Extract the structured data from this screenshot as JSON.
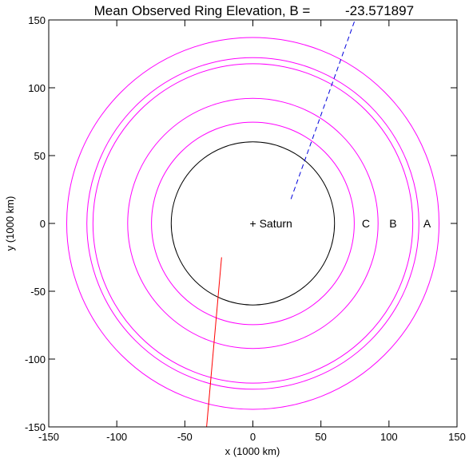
{
  "chart_data": {
    "type": "line",
    "title_prefix": "Mean Observed Ring Elevation, B =",
    "title_value": "-23.571897",
    "xlabel": "x (1000 km)",
    "ylabel": "y (1000 km)",
    "xlim": [
      -150,
      150
    ],
    "ylim": [
      -150,
      150
    ],
    "xticks": [
      -150,
      -100,
      -50,
      0,
      50,
      100,
      150
    ],
    "yticks": [
      -150,
      -100,
      -50,
      0,
      50,
      100,
      150
    ],
    "xtick_labels": [
      "-150",
      "-100",
      "-50",
      "0",
      "50",
      "100",
      "150"
    ],
    "ytick_labels": [
      "-150",
      "-100",
      "-50",
      "0",
      "50",
      "100",
      "150"
    ],
    "grid": false,
    "planet": {
      "label": "+ Saturn",
      "radius": 60,
      "color": "#000000"
    },
    "rings": [
      {
        "radius": 74.5
      },
      {
        "radius": 92
      },
      {
        "radius": 117.5
      },
      {
        "radius": 122
      },
      {
        "radius": 136.8
      }
    ],
    "ring_color": "#ff00ff",
    "ring_labels": [
      {
        "text": "C",
        "x": 83,
        "y": 0
      },
      {
        "text": "B",
        "x": 103,
        "y": 0
      },
      {
        "text": "A",
        "x": 128,
        "y": 0
      }
    ],
    "lines": [
      {
        "style": "dashed",
        "color": "#0000dd",
        "x": [
          28,
          75
        ],
        "y": [
          18,
          150
        ]
      },
      {
        "style": "solid",
        "color": "#ff0000",
        "x": [
          -23,
          -34
        ],
        "y": [
          -25,
          -150
        ]
      }
    ]
  }
}
